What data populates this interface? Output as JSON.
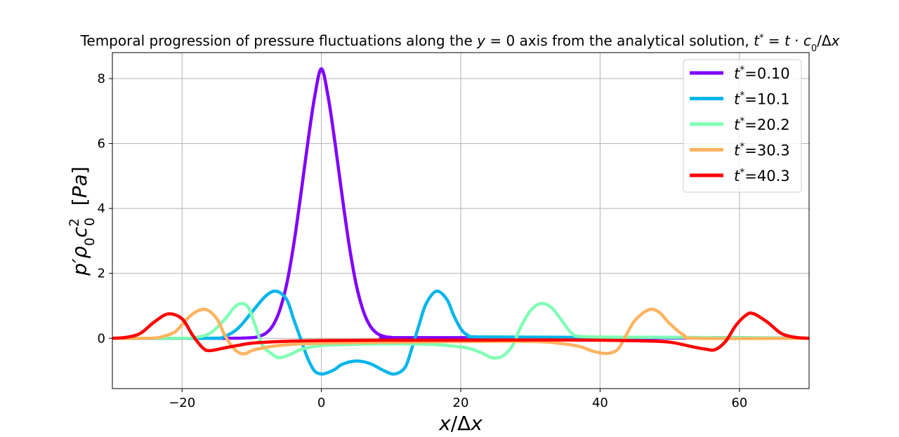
{
  "chart_data": {
    "type": "line",
    "title": "Temporal progression of pressure fluctuations along the y = 0 axis from the analytical solution, t* = t · c₀/Δx",
    "xlabel": "x/Δx",
    "ylabel": "p′ρ₀c₀² [Pa]",
    "xlim": [
      -30,
      70
    ],
    "ylim": [
      -1.55,
      8.8
    ],
    "xticks": [
      -20,
      0,
      20,
      40,
      60
    ],
    "yticks": [
      0,
      2,
      4,
      6,
      8
    ],
    "grid": true,
    "legend_position": "top-right",
    "series": [
      {
        "name": "t*=0.10",
        "color": "#8000ff",
        "points": [
          [
            -30,
            0
          ],
          [
            -14,
            0
          ],
          [
            -10,
            0.02
          ],
          [
            -9,
            0.06
          ],
          [
            -8,
            0.15
          ],
          [
            -7,
            0.38
          ],
          [
            -6,
            0.85
          ],
          [
            -5,
            1.65
          ],
          [
            -4,
            2.85
          ],
          [
            -3,
            4.35
          ],
          [
            -2,
            5.95
          ],
          [
            -1,
            7.4
          ],
          [
            0,
            8.3
          ],
          [
            1,
            7.4
          ],
          [
            2,
            5.95
          ],
          [
            3,
            4.35
          ],
          [
            4,
            2.85
          ],
          [
            5,
            1.65
          ],
          [
            6,
            0.85
          ],
          [
            7,
            0.38
          ],
          [
            8,
            0.15
          ],
          [
            9,
            0.06
          ],
          [
            10,
            0.03
          ],
          [
            14,
            0.02
          ],
          [
            70,
            0
          ]
        ]
      },
      {
        "name": "t*=10.1",
        "color": "#00b5eb",
        "points": [
          [
            -30,
            0
          ],
          [
            -16,
            0
          ],
          [
            -14,
            0.05
          ],
          [
            -12,
            0.3
          ],
          [
            -10,
            0.8
          ],
          [
            -8,
            1.3
          ],
          [
            -6.5,
            1.45
          ],
          [
            -5,
            1.2
          ],
          [
            -4,
            0.6
          ],
          [
            -3,
            0
          ],
          [
            -2,
            -0.6
          ],
          [
            -1,
            -1.0
          ],
          [
            0,
            -1.1
          ],
          [
            1,
            -1.05
          ],
          [
            2,
            -0.95
          ],
          [
            3,
            -0.8
          ],
          [
            5,
            -0.7
          ],
          [
            7,
            -0.78
          ],
          [
            9,
            -1.0
          ],
          [
            10.5,
            -1.1
          ],
          [
            12,
            -0.9
          ],
          [
            13,
            -0.3
          ],
          [
            14,
            0.4
          ],
          [
            15,
            1.05
          ],
          [
            16.5,
            1.45
          ],
          [
            18,
            1.2
          ],
          [
            19,
            0.7
          ],
          [
            20,
            0.3
          ],
          [
            21,
            0.1
          ],
          [
            23,
            0.04
          ],
          [
            40,
            0.03
          ],
          [
            60,
            0.02
          ],
          [
            70,
            0
          ]
        ]
      },
      {
        "name": "t*=20.2",
        "color": "#80ffb4",
        "points": [
          [
            -30,
            0
          ],
          [
            -20,
            0
          ],
          [
            -18,
            0.03
          ],
          [
            -16,
            0.15
          ],
          [
            -14,
            0.55
          ],
          [
            -12.5,
            0.95
          ],
          [
            -11.5,
            1.07
          ],
          [
            -10.5,
            0.95
          ],
          [
            -9.5,
            0.4
          ],
          [
            -8.5,
            -0.2
          ],
          [
            -7,
            -0.5
          ],
          [
            -6,
            -0.6
          ],
          [
            -4.5,
            -0.5
          ],
          [
            -3,
            -0.35
          ],
          [
            -1,
            -0.25
          ],
          [
            2,
            -0.2
          ],
          [
            6,
            -0.18
          ],
          [
            10,
            -0.17
          ],
          [
            15,
            -0.18
          ],
          [
            18,
            -0.22
          ],
          [
            21,
            -0.3
          ],
          [
            23,
            -0.45
          ],
          [
            24.5,
            -0.6
          ],
          [
            26,
            -0.55
          ],
          [
            27.5,
            -0.2
          ],
          [
            28.5,
            0.3
          ],
          [
            30,
            0.85
          ],
          [
            31.5,
            1.07
          ],
          [
            33,
            0.95
          ],
          [
            34.5,
            0.55
          ],
          [
            36,
            0.15
          ],
          [
            38,
            0.05
          ],
          [
            50,
            0.03
          ],
          [
            70,
            0
          ]
        ]
      },
      {
        "name": "t*=30.3",
        "color": "#ffb360",
        "points": [
          [
            -30,
            0
          ],
          [
            -25,
            0
          ],
          [
            -23,
            0.04
          ],
          [
            -21,
            0.2
          ],
          [
            -19.5,
            0.55
          ],
          [
            -18,
            0.82
          ],
          [
            -16.5,
            0.88
          ],
          [
            -15,
            0.6
          ],
          [
            -14,
            0.15
          ],
          [
            -13,
            -0.2
          ],
          [
            -12,
            -0.42
          ],
          [
            -11,
            -0.48
          ],
          [
            -10,
            -0.38
          ],
          [
            -8,
            -0.28
          ],
          [
            -5,
            -0.2
          ],
          [
            0,
            -0.15
          ],
          [
            10,
            -0.12
          ],
          [
            20,
            -0.1
          ],
          [
            30,
            -0.1
          ],
          [
            34,
            -0.15
          ],
          [
            37,
            -0.25
          ],
          [
            39,
            -0.4
          ],
          [
            41,
            -0.47
          ],
          [
            42.5,
            -0.35
          ],
          [
            43.5,
            0
          ],
          [
            45,
            0.55
          ],
          [
            47,
            0.88
          ],
          [
            48.5,
            0.8
          ],
          [
            50,
            0.45
          ],
          [
            52,
            0.1
          ],
          [
            54,
            0
          ],
          [
            70,
            0
          ]
        ]
      },
      {
        "name": "t*=40.3",
        "color": "#ff0000",
        "points": [
          [
            -30,
            0
          ],
          [
            -28,
            0.03
          ],
          [
            -26,
            0.15
          ],
          [
            -24,
            0.5
          ],
          [
            -22,
            0.75
          ],
          [
            -20,
            0.6
          ],
          [
            -18.5,
            0.1
          ],
          [
            -17,
            -0.3
          ],
          [
            -16,
            -0.38
          ],
          [
            -14,
            -0.3
          ],
          [
            -12,
            -0.22
          ],
          [
            -10,
            -0.15
          ],
          [
            -6,
            -0.1
          ],
          [
            0,
            -0.07
          ],
          [
            10,
            -0.06
          ],
          [
            20,
            -0.06
          ],
          [
            30,
            -0.05
          ],
          [
            40,
            -0.06
          ],
          [
            46,
            -0.08
          ],
          [
            50,
            -0.12
          ],
          [
            53,
            -0.25
          ],
          [
            55,
            -0.33
          ],
          [
            56.5,
            -0.35
          ],
          [
            58,
            -0.1
          ],
          [
            59.5,
            0.4
          ],
          [
            61,
            0.72
          ],
          [
            62,
            0.76
          ],
          [
            64,
            0.5
          ],
          [
            66,
            0.15
          ],
          [
            68,
            0.03
          ],
          [
            70,
            0
          ]
        ]
      }
    ]
  }
}
